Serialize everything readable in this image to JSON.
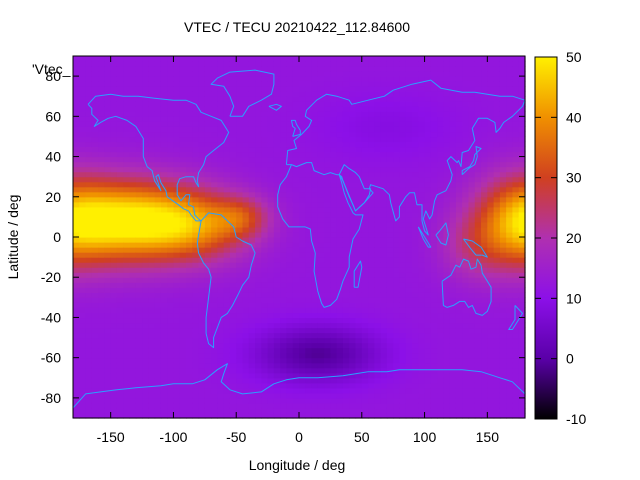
{
  "chart_data": {
    "type": "heatmap",
    "title": "VTEC / TECU 20210422_112.84600",
    "xlabel": "Longitude / deg",
    "ylabel": "Latitude / deg",
    "key_label": "'Vtec_",
    "xlim": [
      -180,
      180
    ],
    "ylim": [
      -90,
      90
    ],
    "x_ticks": [
      -150,
      -100,
      -50,
      0,
      50,
      100,
      150
    ],
    "y_ticks": [
      -80,
      -60,
      -40,
      -20,
      0,
      20,
      40,
      60,
      80
    ],
    "colorbar": {
      "range": [
        -10,
        50
      ],
      "ticks": [
        -10,
        0,
        10,
        20,
        30,
        40,
        50
      ],
      "colors": [
        "#000000",
        "#5a00a8",
        "#8c10e8",
        "#b030b0",
        "#d04020",
        "#f09000",
        "#fff000"
      ]
    },
    "background_tecu": 12,
    "features": [
      {
        "lon": -135,
        "lat": 8,
        "peak_tecu": 36,
        "sigma_lon": 38,
        "sigma_lat": 14
      },
      {
        "lon": -80,
        "lat": 6,
        "peak_tecu": 20,
        "sigma_lon": 30,
        "sigma_lat": 12
      },
      {
        "lon": -45,
        "lat": 10,
        "peak_tecu": 12,
        "sigma_lon": 15,
        "sigma_lat": 7
      },
      {
        "lon": 175,
        "lat": 8,
        "peak_tecu": 22,
        "sigma_lon": 25,
        "sigma_lat": 16
      },
      {
        "lon": 140,
        "lat": -5,
        "peak_tecu": 8,
        "sigma_lon": 20,
        "sigma_lat": 12
      },
      {
        "lon": 15,
        "lat": -58,
        "peak_tecu": -13,
        "sigma_lon": 35,
        "sigma_lat": 10
      },
      {
        "lon": 70,
        "lat": 55,
        "peak_tecu": -3,
        "sigma_lon": 40,
        "sigma_lat": 12
      }
    ]
  }
}
